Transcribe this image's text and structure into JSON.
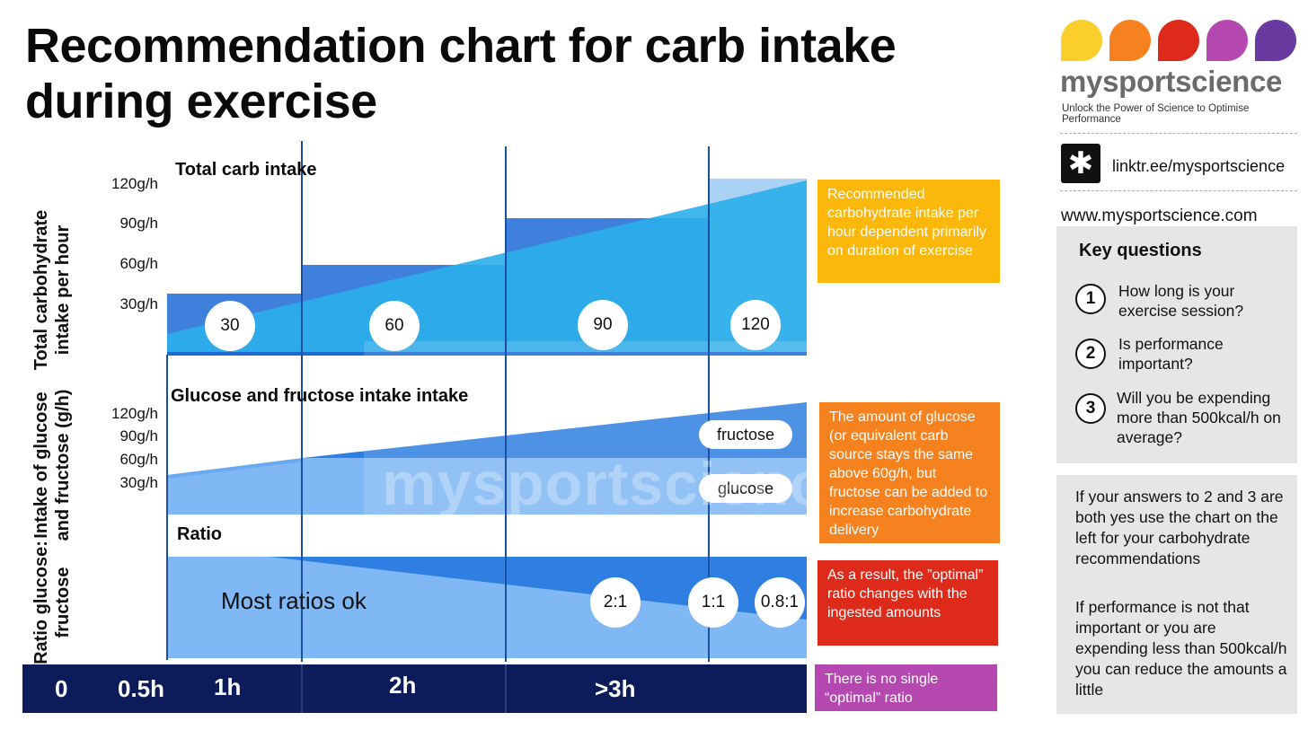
{
  "title": "Recommendation chart for carb intake during exercise",
  "colors": {
    "dark_navy": "#0c1c5a",
    "blue_light": "#7fb8f4",
    "blue_mid": "#2f8ff0",
    "blue_dark": "#1d6ad6",
    "cyan": "#2aaeea",
    "yellow": "#fbb80a",
    "orange": "#f5821f",
    "red": "#dd2a1b",
    "purple": "#b448b0",
    "panel_grey": "#e6e6e8"
  },
  "chart_data": [
    {
      "type": "area",
      "title": "Total carb intake",
      "ylabel": "Total carbohydrate intake per hour",
      "yticks": [
        "120g/h",
        "90g/h",
        "60g/h",
        "30g/h"
      ],
      "x_labels": [
        "0",
        "0.5h",
        "1h",
        "2h",
        ">3h"
      ],
      "steps": [
        {
          "duration": "<1h",
          "value": 30,
          "label": "30"
        },
        {
          "duration": "1-2h",
          "value": 60,
          "label": "60"
        },
        {
          "duration": "2-3h",
          "value": 90,
          "label": "90"
        },
        {
          "duration": ">3h",
          "value": 120,
          "label": "120"
        }
      ],
      "unit": "g/h"
    },
    {
      "type": "area",
      "title": "Glucose and fructose intake intake",
      "ylabel": "Intake of glucose and fructose (g/h)",
      "yticks": [
        "120g/h",
        "90g/h",
        "60g/h",
        "30g/h"
      ],
      "series": [
        {
          "name": "glucose",
          "shape": "rises then plateaus at 60g/h"
        },
        {
          "name": "fructose",
          "shape": "added above 60g/h up to 120g/h"
        }
      ]
    },
    {
      "type": "area",
      "title": "Ratio",
      "ylabel": "Ratio glucose: fructose",
      "annotations": [
        "Most ratios ok",
        "2:1",
        "1:1",
        "0.8:1"
      ]
    }
  ],
  "axis": {
    "ticks": [
      "0",
      "0.5h",
      "1h",
      "2h",
      ">3h"
    ]
  },
  "notes": [
    {
      "text": "Recommended carbohydrate intake per hour dependent primarily on duration of exercise",
      "color": "#fbb80a"
    },
    {
      "text": "The amount of glucose (or equivalent carb source stays the same above 60g/h, but fructose can be added to increase carbohydrate delivery",
      "color": "#f5821f"
    },
    {
      "text": "As a result, the ”optimal” ratio changes with the ingested amounts",
      "color": "#dd2a1b"
    },
    {
      "text": "There is no single “optimal” ratio",
      "color": "#b448b0"
    }
  ],
  "brand": {
    "name": "mysportscience",
    "tagline": "Unlock the Power of Science to Optimise Performance",
    "link": "linktr.ee/mysportscience",
    "website": "www.mysportscience.com",
    "drop_colors": [
      "#fbcf2b",
      "#f5821f",
      "#dd2a1b",
      "#b448b0",
      "#6a3aa0"
    ]
  },
  "key_questions": {
    "heading": "Key questions",
    "items": [
      {
        "num": "1",
        "text": "How long is your exercise session?"
      },
      {
        "num": "2",
        "text": "Is performance important?"
      },
      {
        "num": "3",
        "text": "Will you be expending more than 500kcal/h on average?"
      }
    ]
  },
  "advice": {
    "p1": "If your answers to 2 and 3 are both yes use the chart on the left for your carbohydrate recommendations",
    "p2": "If performance is not that important or you are expending less than 500kcal/h you can reduce the amounts a little"
  }
}
